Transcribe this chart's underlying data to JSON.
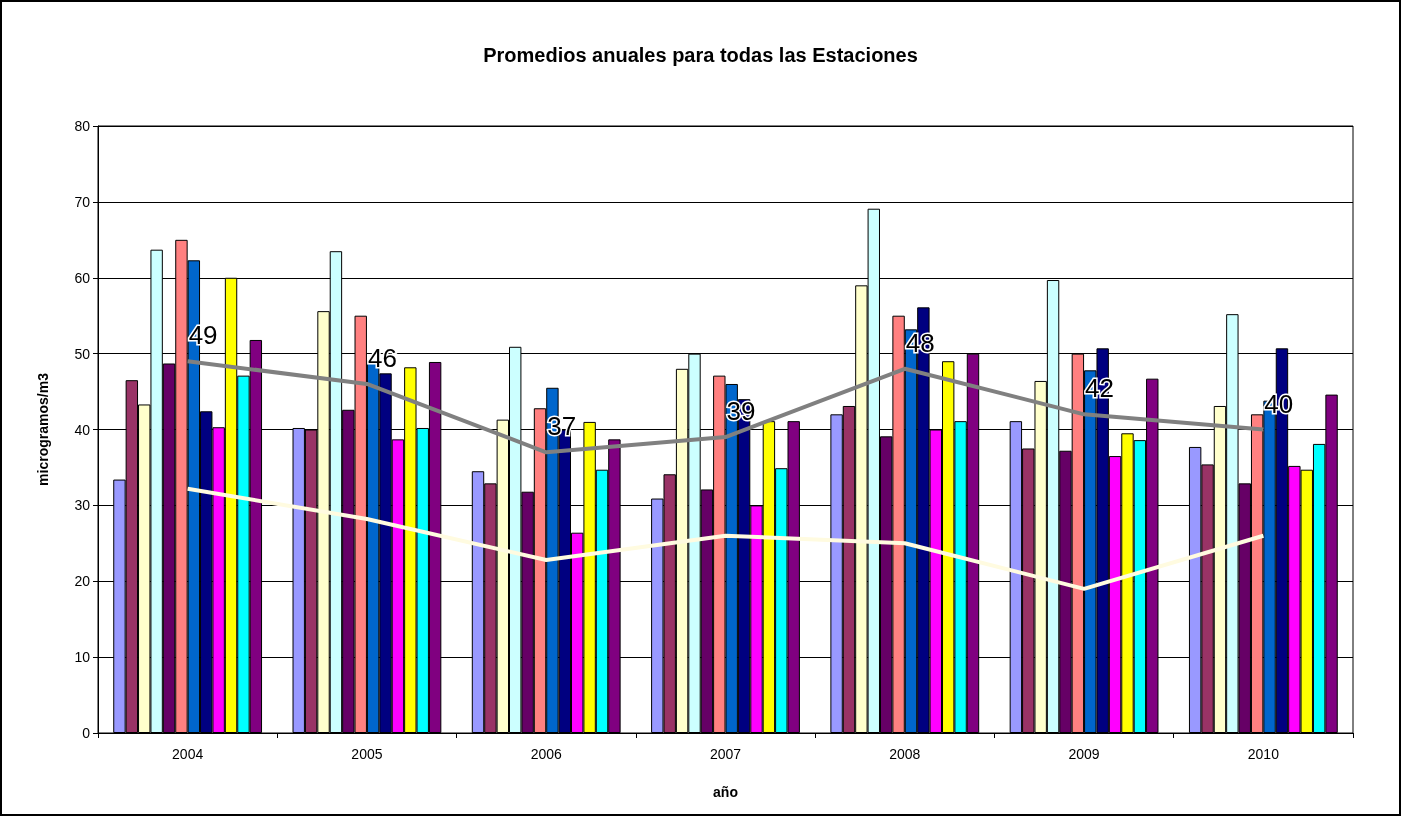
{
  "chart_data": {
    "type": "bar",
    "title": "Promedios anuales para todas las Estaciones",
    "xlabel": "año",
    "ylabel": "microgramos/m3",
    "categories": [
      "2004",
      "2005",
      "2006",
      "2007",
      "2008",
      "2009",
      "2010"
    ],
    "ylim": [
      0,
      80
    ],
    "yticks": [
      0,
      10,
      20,
      30,
      40,
      50,
      60,
      70,
      80
    ],
    "grid": "y",
    "series": [
      {
        "color": "#9999ff",
        "values": [
          33.4,
          40.2,
          34.5,
          30.9,
          42.0,
          41.1,
          37.7
        ]
      },
      {
        "color": "#993366",
        "values": [
          46.5,
          40.0,
          32.9,
          34.1,
          43.1,
          37.5,
          35.4
        ]
      },
      {
        "color": "#ffffcc",
        "values": [
          43.3,
          55.6,
          41.3,
          48.0,
          59.0,
          46.4,
          43.1
        ]
      },
      {
        "color": "#ccffff",
        "values": [
          63.7,
          63.5,
          50.9,
          50.0,
          69.1,
          59.7,
          55.2
        ]
      },
      {
        "color": "#660066",
        "values": [
          48.7,
          42.6,
          31.8,
          32.1,
          39.1,
          37.2,
          32.9
        ]
      },
      {
        "color": "#ff8080",
        "values": [
          65.0,
          55.0,
          42.8,
          47.1,
          55.0,
          50.0,
          42.0
        ]
      },
      {
        "color": "#0066cc",
        "values": [
          62.3,
          49.1,
          45.5,
          46.0,
          53.2,
          47.8,
          43.8
        ]
      },
      {
        "color": "#000080",
        "values": [
          42.4,
          47.4,
          40.0,
          44.0,
          56.1,
          50.7,
          50.7
        ]
      },
      {
        "color": "#ff00ff",
        "values": [
          40.3,
          38.7,
          26.4,
          30.0,
          40.0,
          36.5,
          35.2
        ]
      },
      {
        "color": "#ffff00",
        "values": [
          60.0,
          48.2,
          41.0,
          41.1,
          49.0,
          39.5,
          34.7
        ]
      },
      {
        "color": "#00ffff",
        "values": [
          47.1,
          40.2,
          34.7,
          34.9,
          41.1,
          38.6,
          38.1
        ]
      },
      {
        "color": "#800080",
        "values": [
          51.8,
          48.9,
          38.7,
          41.1,
          50.0,
          46.7,
          44.6
        ]
      },
      {
        "type": "line",
        "color": "#808080",
        "marker": "none",
        "values": [
          49,
          46,
          37,
          39,
          48,
          42,
          40
        ],
        "value_labels": [
          "49",
          "46",
          "37",
          "39",
          "48",
          "42",
          "40"
        ]
      },
      {
        "type": "line",
        "color": "#fffbe0",
        "marker": "none",
        "values": [
          32.2,
          28.2,
          22.8,
          26.0,
          25.0,
          19.0,
          26.0
        ]
      }
    ]
  }
}
